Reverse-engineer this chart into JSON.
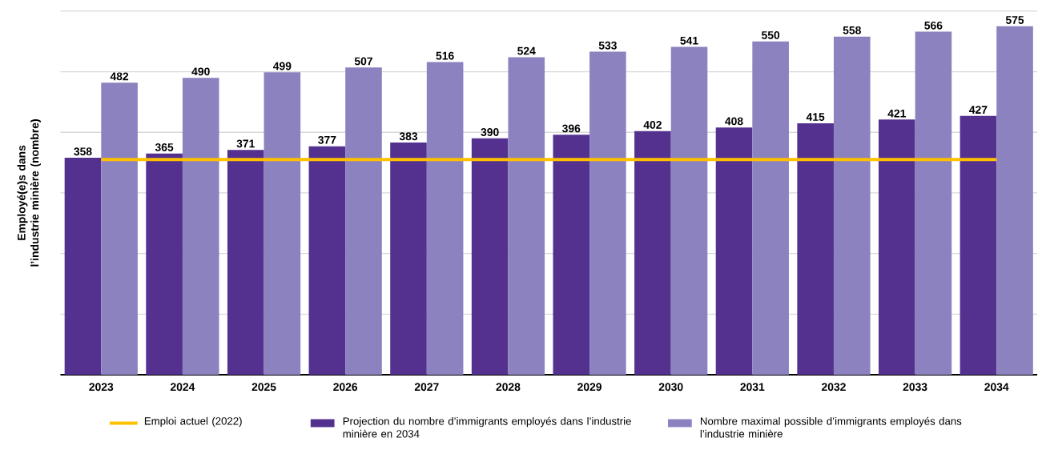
{
  "chart_data": {
    "type": "bar",
    "ylabel": "Employé(e)s dans l’industrie minière (nombre)",
    "categories": [
      "2023",
      "2024",
      "2025",
      "2026",
      "2027",
      "2028",
      "2029",
      "2030",
      "2031",
      "2032",
      "2033",
      "2034"
    ],
    "series": [
      {
        "name": "Projection du nombre d’immigrants employés dans l’industrie minière en 2034",
        "color": "#54318f",
        "values": [
          358,
          365,
          371,
          377,
          383,
          390,
          396,
          402,
          408,
          415,
          421,
          427
        ]
      },
      {
        "name": "Nombre maximal possible d’immigrants employés dans l’industrie minière",
        "color": "#8c82c0",
        "values": [
          482,
          490,
          499,
          507,
          516,
          524,
          533,
          541,
          550,
          558,
          566,
          575
        ]
      }
    ],
    "ylim": [
      0,
      600
    ],
    "yticks": [
      {
        "value": 0,
        "label": null
      },
      {
        "value": 100,
        "label": null
      },
      {
        "value": 200,
        "label": null
      },
      {
        "value": 300,
        "label": null
      },
      {
        "value": 400,
        "label": null
      },
      {
        "value": 500,
        "label": null
      },
      {
        "value": 600,
        "label": null
      }
    ],
    "grid": "y",
    "data_labels": true,
    "legend": "bottom",
    "ref_lines": [
      {
        "axis": "y",
        "value": 355,
        "label": "Emploi actuel (2022)",
        "color": "#ffc000",
        "line_style": "solid"
      }
    ]
  }
}
